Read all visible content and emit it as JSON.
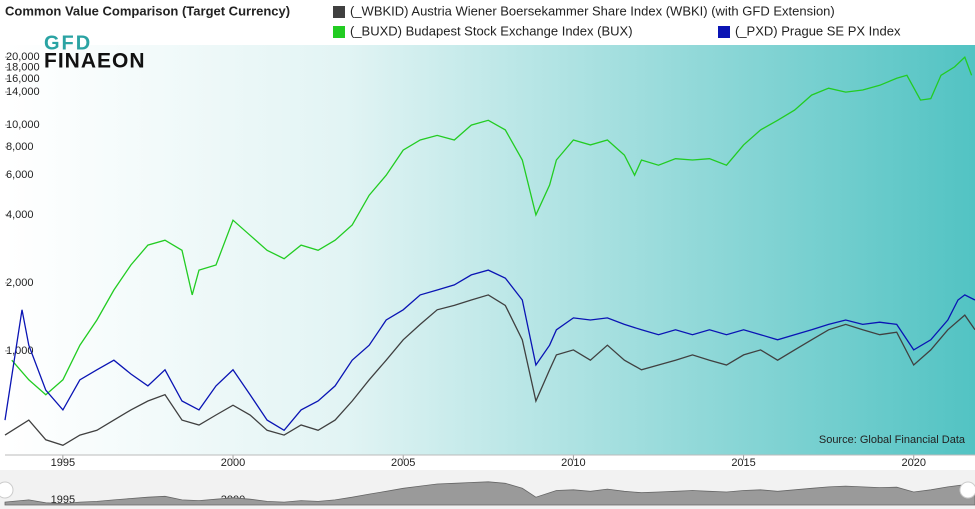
{
  "logo": {
    "top": "GFD",
    "bottom": "FINAEON"
  },
  "source": "Source: Global Financial Data",
  "chart_data": {
    "type": "line",
    "title": "Common Value Comparison (Target Currency)",
    "log_y": true,
    "grid": false,
    "xlim": [
      1993.3,
      2021.8
    ],
    "xticks": [
      1995,
      2000,
      2005,
      2010,
      2015,
      2020
    ],
    "ylim": [
      346,
      22620
    ],
    "yticks": [
      {
        "value": 1000,
        "label": "1,000"
      },
      {
        "value": 2000,
        "label": "2,000"
      },
      {
        "value": 4000,
        "label": "4,000"
      },
      {
        "value": 6000,
        "label": "6,000"
      },
      {
        "value": 8000,
        "label": "8,000"
      },
      {
        "value": 10000,
        "label": "10,000"
      },
      {
        "value": 14000,
        "label": "14,000"
      },
      {
        "value": 16000,
        "label": "16,000"
      },
      {
        "value": 18000,
        "label": "18,000"
      },
      {
        "value": 20000,
        "label": "20,000"
      }
    ],
    "series": [
      {
        "name": "(_WBKID) Austria Wiener Boersekammer Share Index (WBKI) (with GFD Extension)",
        "color": "#404040",
        "x": [
          1993.3,
          1994,
          1994.5,
          1995,
          1995.5,
          1996,
          1996.5,
          1997,
          1997.5,
          1998,
          1998.5,
          1999,
          1999.5,
          2000,
          2000.5,
          2001,
          2001.5,
          2002,
          2002.5,
          2003,
          2003.5,
          2004,
          2004.5,
          2005,
          2005.5,
          2006,
          2006.5,
          2007,
          2007.5,
          2008,
          2008.5,
          2008.9,
          2009.3,
          2009.5,
          2010,
          2010.5,
          2011,
          2011.5,
          2012,
          2012.5,
          2013,
          2013.5,
          2014,
          2014.5,
          2015,
          2015.5,
          2016,
          2016.5,
          2017,
          2017.5,
          2018,
          2018.5,
          2019,
          2019.5,
          2020,
          2020.5,
          2021,
          2021.5,
          2021.8
        ],
        "values": [
          424,
          494,
          404,
          382,
          424,
          445,
          494,
          548,
          600,
          640,
          494,
          470,
          520,
          575,
          520,
          445,
          424,
          470,
          445,
          494,
          600,
          745,
          910,
          1120,
          1310,
          1520,
          1590,
          1680,
          1770,
          1590,
          1120,
          600,
          825,
          960,
          1010,
          910,
          1060,
          910,
          825,
          866,
          910,
          960,
          910,
          866,
          960,
          1010,
          910,
          1010,
          1120,
          1240,
          1310,
          1240,
          1180,
          1210,
          866,
          1010,
          1240,
          1440,
          1240
        ]
      },
      {
        "name": "(_BUXD) Budapest Stock Exchange Index (BUX)",
        "color": "#22cc22",
        "x": [
          1993.5,
          1994,
          1994.5,
          1995,
          1995.5,
          1996,
          1996.5,
          1997,
          1997.5,
          1998,
          1998.5,
          1998.8,
          1999,
          1999.5,
          2000,
          2000.5,
          2001,
          2001.5,
          2002,
          2002.5,
          2003,
          2003.5,
          2004,
          2004.5,
          2005,
          2005.5,
          2006,
          2006.5,
          2007,
          2007.5,
          2008,
          2008.5,
          2008.9,
          2009.3,
          2009.5,
          2010,
          2010.5,
          2011,
          2011.5,
          2011.8,
          2012,
          2012.5,
          2013,
          2013.5,
          2014,
          2014.5,
          2015,
          2015.5,
          2016,
          2016.5,
          2017,
          2017.5,
          2018,
          2018.5,
          2019,
          2019.5,
          2019.8,
          2020.2,
          2020.5,
          2020.8,
          2021.2,
          2021.5,
          2021.7
        ],
        "values": [
          910,
          745,
          640,
          745,
          1060,
          1370,
          1860,
          2400,
          2940,
          3090,
          2790,
          1770,
          2280,
          2400,
          3790,
          3250,
          2790,
          2560,
          2940,
          2790,
          3090,
          3610,
          4890,
          6000,
          7750,
          8590,
          9000,
          8590,
          10000,
          10500,
          9520,
          7000,
          4000,
          5430,
          7000,
          8590,
          8170,
          8590,
          7360,
          6000,
          7000,
          6640,
          7100,
          7000,
          7100,
          6640,
          8170,
          9520,
          10500,
          11650,
          13570,
          14560,
          14000,
          14300,
          15000,
          16100,
          16600,
          12900,
          13100,
          16600,
          18100,
          20000,
          16600
        ]
      },
      {
        "name": "(_PXD) Prague SE PX Index",
        "color": "#0a14b4",
        "x": [
          1993.3,
          1993.8,
          1994,
          1994.5,
          1995,
          1995.5,
          1996,
          1996.5,
          1997,
          1997.5,
          1998,
          1998.5,
          1999,
          1999.5,
          2000,
          2000.5,
          2001,
          2001.5,
          2002,
          2002.5,
          2003,
          2003.5,
          2004,
          2004.5,
          2005,
          2005.5,
          2006,
          2006.5,
          2007,
          2007.5,
          2008,
          2008.5,
          2008.9,
          2009.3,
          2009.5,
          2010,
          2010.5,
          2011,
          2011.5,
          2012,
          2012.5,
          2013,
          2013.5,
          2014,
          2014.5,
          2015,
          2015.5,
          2016,
          2016.5,
          2017,
          2017.5,
          2018,
          2018.5,
          2019,
          2019.5,
          2020,
          2020.5,
          2021,
          2021.3,
          2021.5,
          2021.8
        ],
        "values": [
          494,
          1520,
          1060,
          670,
          548,
          745,
          825,
          910,
          790,
          700,
          825,
          600,
          548,
          700,
          825,
          640,
          494,
          445,
          548,
          600,
          700,
          910,
          1060,
          1370,
          1520,
          1770,
          1860,
          1960,
          2170,
          2280,
          2100,
          1680,
          866,
          1060,
          1240,
          1400,
          1370,
          1400,
          1310,
          1240,
          1180,
          1240,
          1180,
          1240,
          1180,
          1240,
          1180,
          1120,
          1180,
          1240,
          1310,
          1370,
          1310,
          1340,
          1310,
          1010,
          1120,
          1370,
          1680,
          1770,
          1680
        ]
      }
    ]
  }
}
